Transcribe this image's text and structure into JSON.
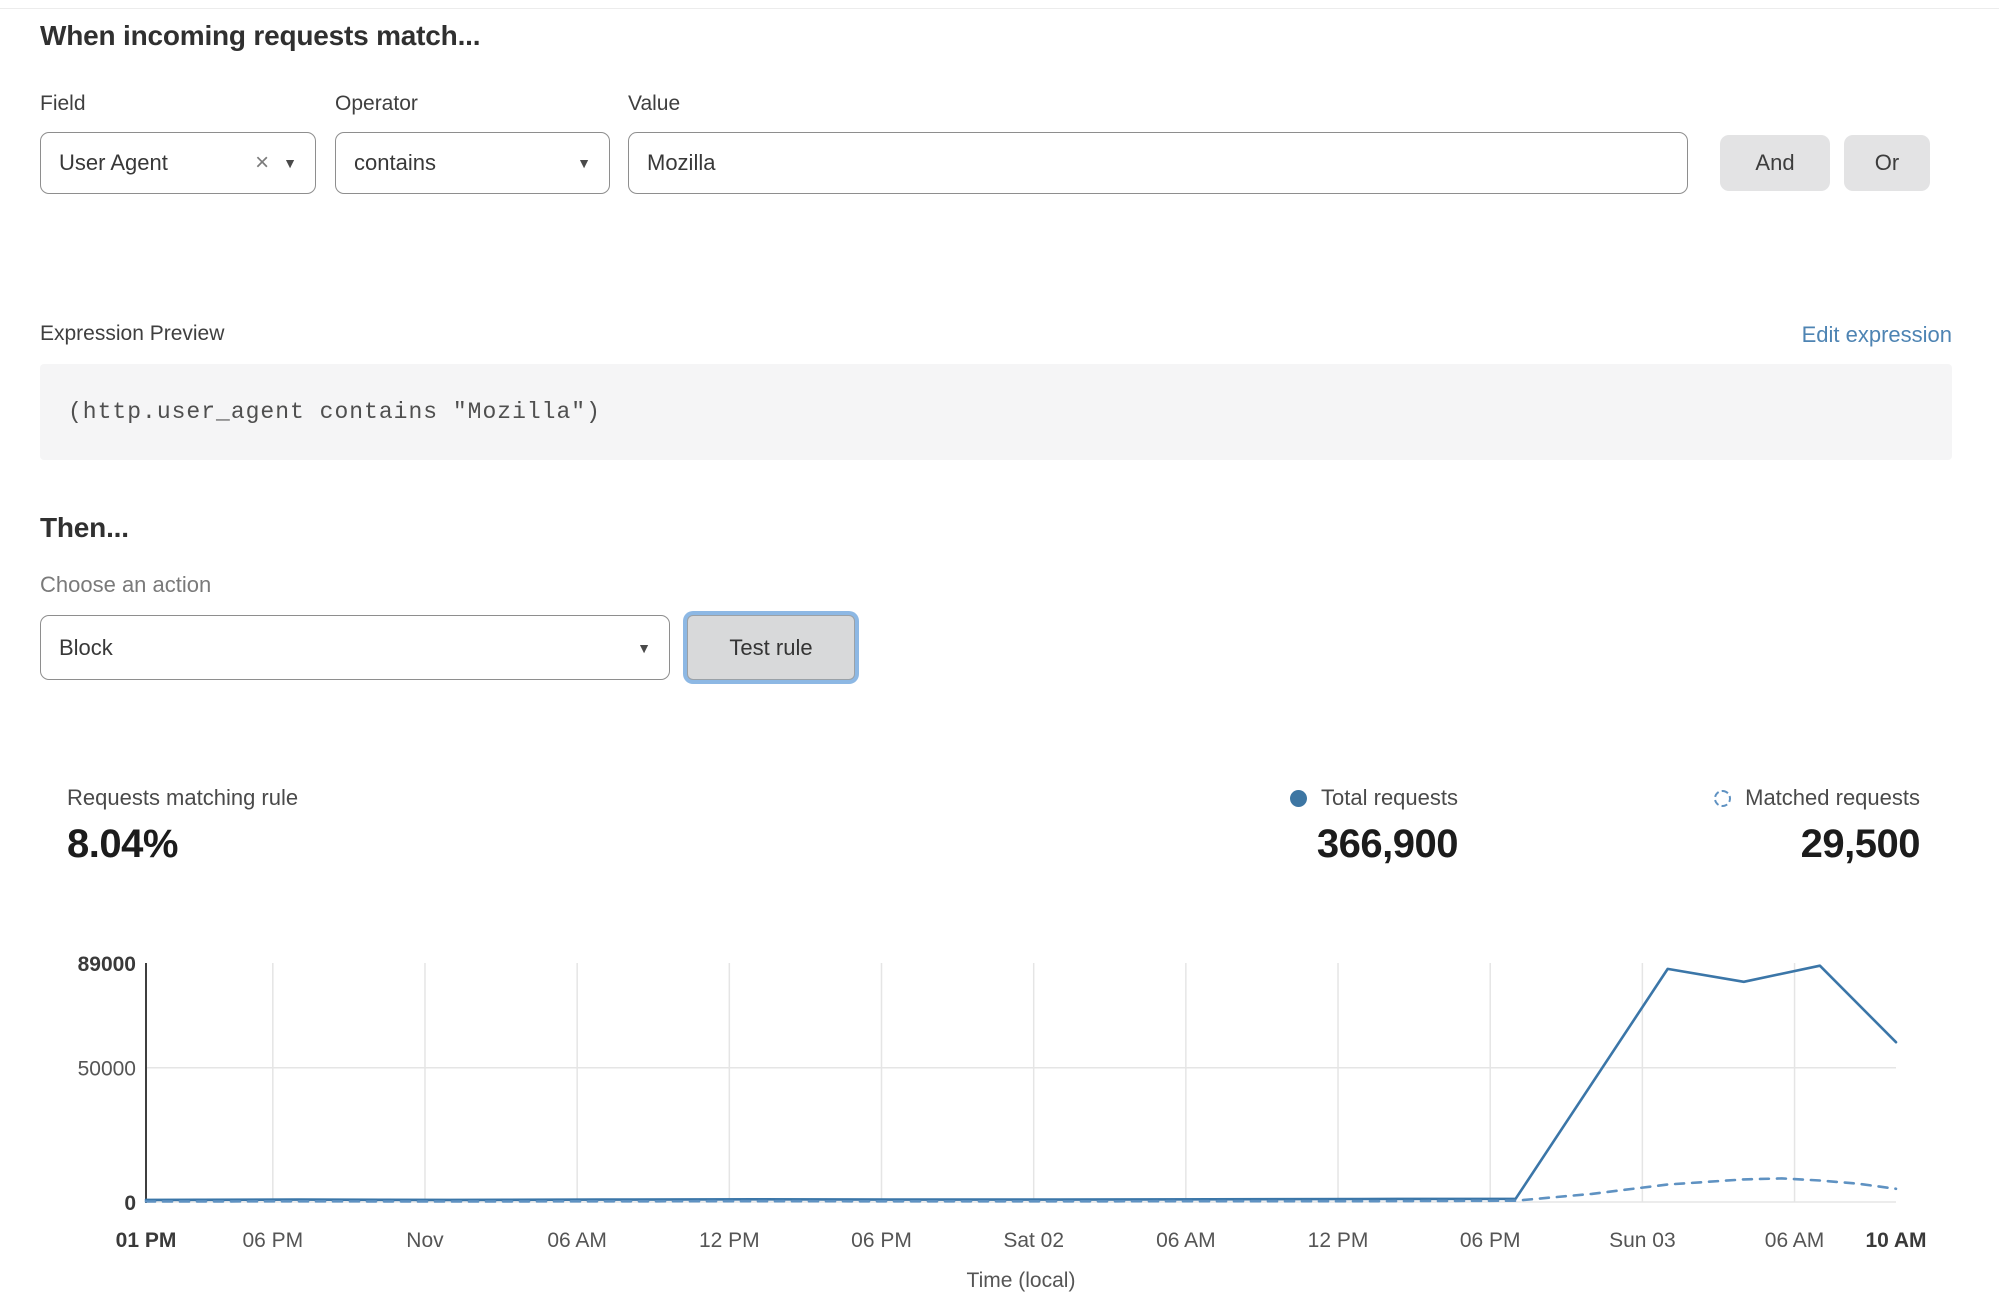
{
  "match_builder": {
    "title": "When incoming requests match...",
    "field": {
      "label": "Field",
      "value": "User Agent",
      "clear_icon": "×",
      "chevron_icon": "▼"
    },
    "operator": {
      "label": "Operator",
      "value": "contains",
      "chevron_icon": "▼"
    },
    "value_field": {
      "label": "Value",
      "value": "Mozilla"
    },
    "and_button": "And",
    "or_button": "Or"
  },
  "expression": {
    "label": "Expression Preview",
    "edit_link": "Edit expression",
    "code": "(http.user_agent contains \"Mozilla\")"
  },
  "action_section": {
    "title": "Then...",
    "label": "Choose an action",
    "selected_action": "Block",
    "chevron_icon": "▼",
    "test_button": "Test rule"
  },
  "stats": {
    "matching_rule": {
      "label": "Requests matching rule",
      "value": "8.04%"
    },
    "total_requests": {
      "label": "Total requests",
      "value": "366,900",
      "color": "#3d76a3"
    },
    "matched_requests": {
      "label": "Matched requests",
      "value": "29,500",
      "color": "#5f92c2"
    }
  },
  "chart_data": {
    "type": "line",
    "title": "",
    "xlabel": "Time (local)",
    "ylabel": "",
    "x_unit_hours_from": "Thu Oct 31 01:00 PM (local)",
    "xlim_hours": [
      0,
      69
    ],
    "ylim": [
      0,
      89000
    ],
    "grid": true,
    "legend_position": "above-chart-right",
    "axis_color": "#3f3f3f",
    "grid_color": "#e5e5e5",
    "tick_color": "#555555",
    "tick_bold_color": "#3a3a3a",
    "y_ticks": [
      {
        "value": 0,
        "label": "0",
        "bold": true
      },
      {
        "value": 50000,
        "label": "50000",
        "bold": false
      },
      {
        "value": 89000,
        "label": "89000",
        "bold": true
      }
    ],
    "x_ticks": [
      {
        "t": 0,
        "label": "01 PM",
        "bold": true
      },
      {
        "t": 5,
        "label": "06 PM",
        "bold": false
      },
      {
        "t": 11,
        "label": "Nov",
        "bold": false
      },
      {
        "t": 17,
        "label": "06 AM",
        "bold": false
      },
      {
        "t": 23,
        "label": "12 PM",
        "bold": false
      },
      {
        "t": 29,
        "label": "06 PM",
        "bold": false
      },
      {
        "t": 35,
        "label": "Sat 02",
        "bold": false
      },
      {
        "t": 41,
        "label": "06 AM",
        "bold": false
      },
      {
        "t": 47,
        "label": "12 PM",
        "bold": false
      },
      {
        "t": 53,
        "label": "06 PM",
        "bold": false
      },
      {
        "t": 59,
        "label": "Sun 03",
        "bold": false
      },
      {
        "t": 65,
        "label": "06 AM",
        "bold": false
      },
      {
        "t": 69,
        "label": "10 AM",
        "bold": true
      }
    ],
    "series": [
      {
        "name": "Total requests",
        "style": "solid",
        "color": "#3b76a8",
        "points": [
          [
            0,
            800
          ],
          [
            6,
            900
          ],
          [
            12,
            800
          ],
          [
            18,
            900
          ],
          [
            24,
            1000
          ],
          [
            30,
            900
          ],
          [
            36,
            900
          ],
          [
            42,
            1000
          ],
          [
            48,
            1100
          ],
          [
            54,
            1200
          ],
          [
            60,
            86800
          ],
          [
            63,
            82000
          ],
          [
            66,
            88000
          ],
          [
            69,
            59500
          ]
        ]
      },
      {
        "name": "Matched requests",
        "style": "dashed",
        "color": "#5f92c2",
        "points": [
          [
            0,
            200
          ],
          [
            6,
            250
          ],
          [
            12,
            200
          ],
          [
            18,
            250
          ],
          [
            24,
            300
          ],
          [
            30,
            250
          ],
          [
            36,
            250
          ],
          [
            42,
            300
          ],
          [
            48,
            300
          ],
          [
            54,
            500
          ],
          [
            57,
            3000
          ],
          [
            60,
            6500
          ],
          [
            63,
            8400
          ],
          [
            64.5,
            8800
          ],
          [
            66,
            8000
          ],
          [
            67.5,
            6800
          ],
          [
            69,
            4900
          ]
        ]
      }
    ]
  }
}
